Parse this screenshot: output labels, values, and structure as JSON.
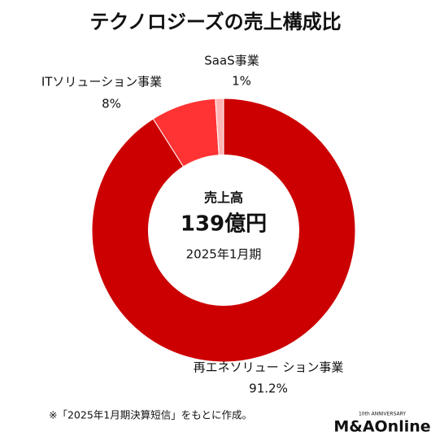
{
  "chart_data": {
    "type": "donut",
    "title": "テクノロジーズの売上構成比",
    "center_title": "売上高",
    "center_value": "139億円",
    "center_period": "2025年1月期",
    "categories": [
      "再エネソリュー ション事業",
      "ITソリューション事業",
      "SaaS事業"
    ],
    "values": [
      91.2,
      8,
      1
    ],
    "value_labels": [
      "91.2%",
      "8%",
      "1%"
    ],
    "colors": [
      "#cc0000",
      "#ff3333",
      "#ffb3b3"
    ],
    "footnote": "※「2025年1月期決算短信」をもとに作成。",
    "logo": "M&AOnline",
    "logo_badge": "10th ANNIVERSARY"
  }
}
